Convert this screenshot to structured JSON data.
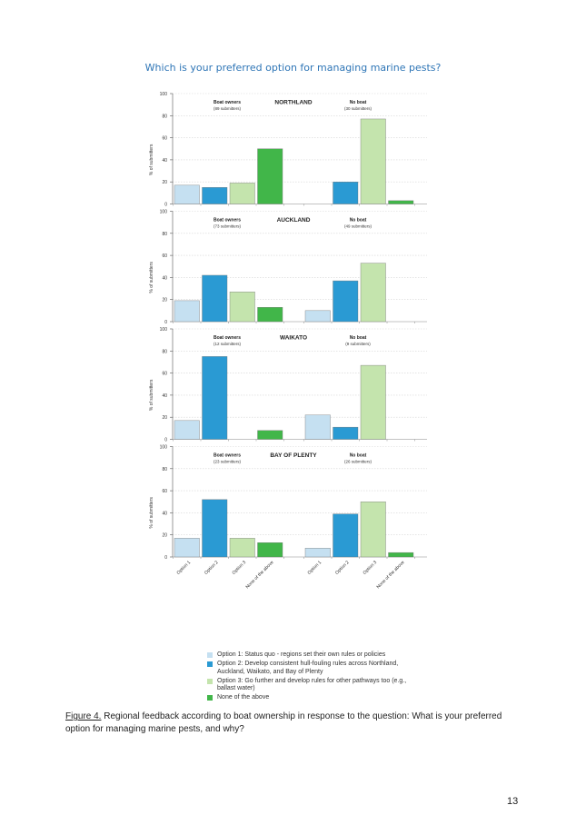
{
  "page": {
    "caption_label": "Figure 4.",
    "caption_text": " Regional feedback according to boat ownership in response to the question: What is your preferred option for managing marine pests, and why?",
    "page_number": "13"
  },
  "chart_data": {
    "type": "bar",
    "title": "Which is your preferred option for managing marine pests?",
    "ylabel": "% of submitters",
    "ylim": [
      0,
      100
    ],
    "yticks": [
      0,
      20,
      40,
      60,
      80,
      100
    ],
    "categories": [
      "Option 1",
      "Option 2",
      "Option 3",
      "None of the above"
    ],
    "colors": [
      "#c5e0f1",
      "#2a9ad3",
      "#c4e4ad",
      "#41b649"
    ],
    "legend": [
      "Option 1: Status quo - regions set their own rules or policies",
      "Option 2: Develop consistent hull-fouling rules across Northland, Auckland, Waikato, and Bay of Plenty",
      "Option 3: Go further and develop rules for other pathways too (e.g., ballast water)",
      "None of the above"
    ],
    "panels": [
      {
        "region": "NORTHLAND",
        "groups": [
          {
            "label": "Boat owners",
            "sub": "(89 submitters)",
            "values": [
              17,
              15,
              19,
              50
            ]
          },
          {
            "label": "No boat",
            "sub": "(30 submitters)",
            "values": [
              0,
              20,
              77,
              3
            ]
          }
        ]
      },
      {
        "region": "AUCKLAND",
        "groups": [
          {
            "label": "Boat owners",
            "sub": "(73 submitters)",
            "values": [
              19,
              42,
              27,
              13
            ]
          },
          {
            "label": "No boat",
            "sub": "(49 submitters)",
            "values": [
              10,
              37,
              53,
              0
            ]
          }
        ]
      },
      {
        "region": "WAIKATO",
        "groups": [
          {
            "label": "Boat owners",
            "sub": "(12 submitters)",
            "values": [
              17,
              75,
              0,
              8
            ]
          },
          {
            "label": "No boat",
            "sub": "(9 submitters)",
            "values": [
              22,
              11,
              67,
              0
            ]
          }
        ]
      },
      {
        "region": "BAY OF PLENTY",
        "groups": [
          {
            "label": "Boat owners",
            "sub": "(23 submitters)",
            "values": [
              17,
              52,
              17,
              13
            ]
          },
          {
            "label": "No boat",
            "sub": "(26 submitters)",
            "values": [
              8,
              39,
              50,
              4
            ]
          }
        ]
      }
    ]
  }
}
